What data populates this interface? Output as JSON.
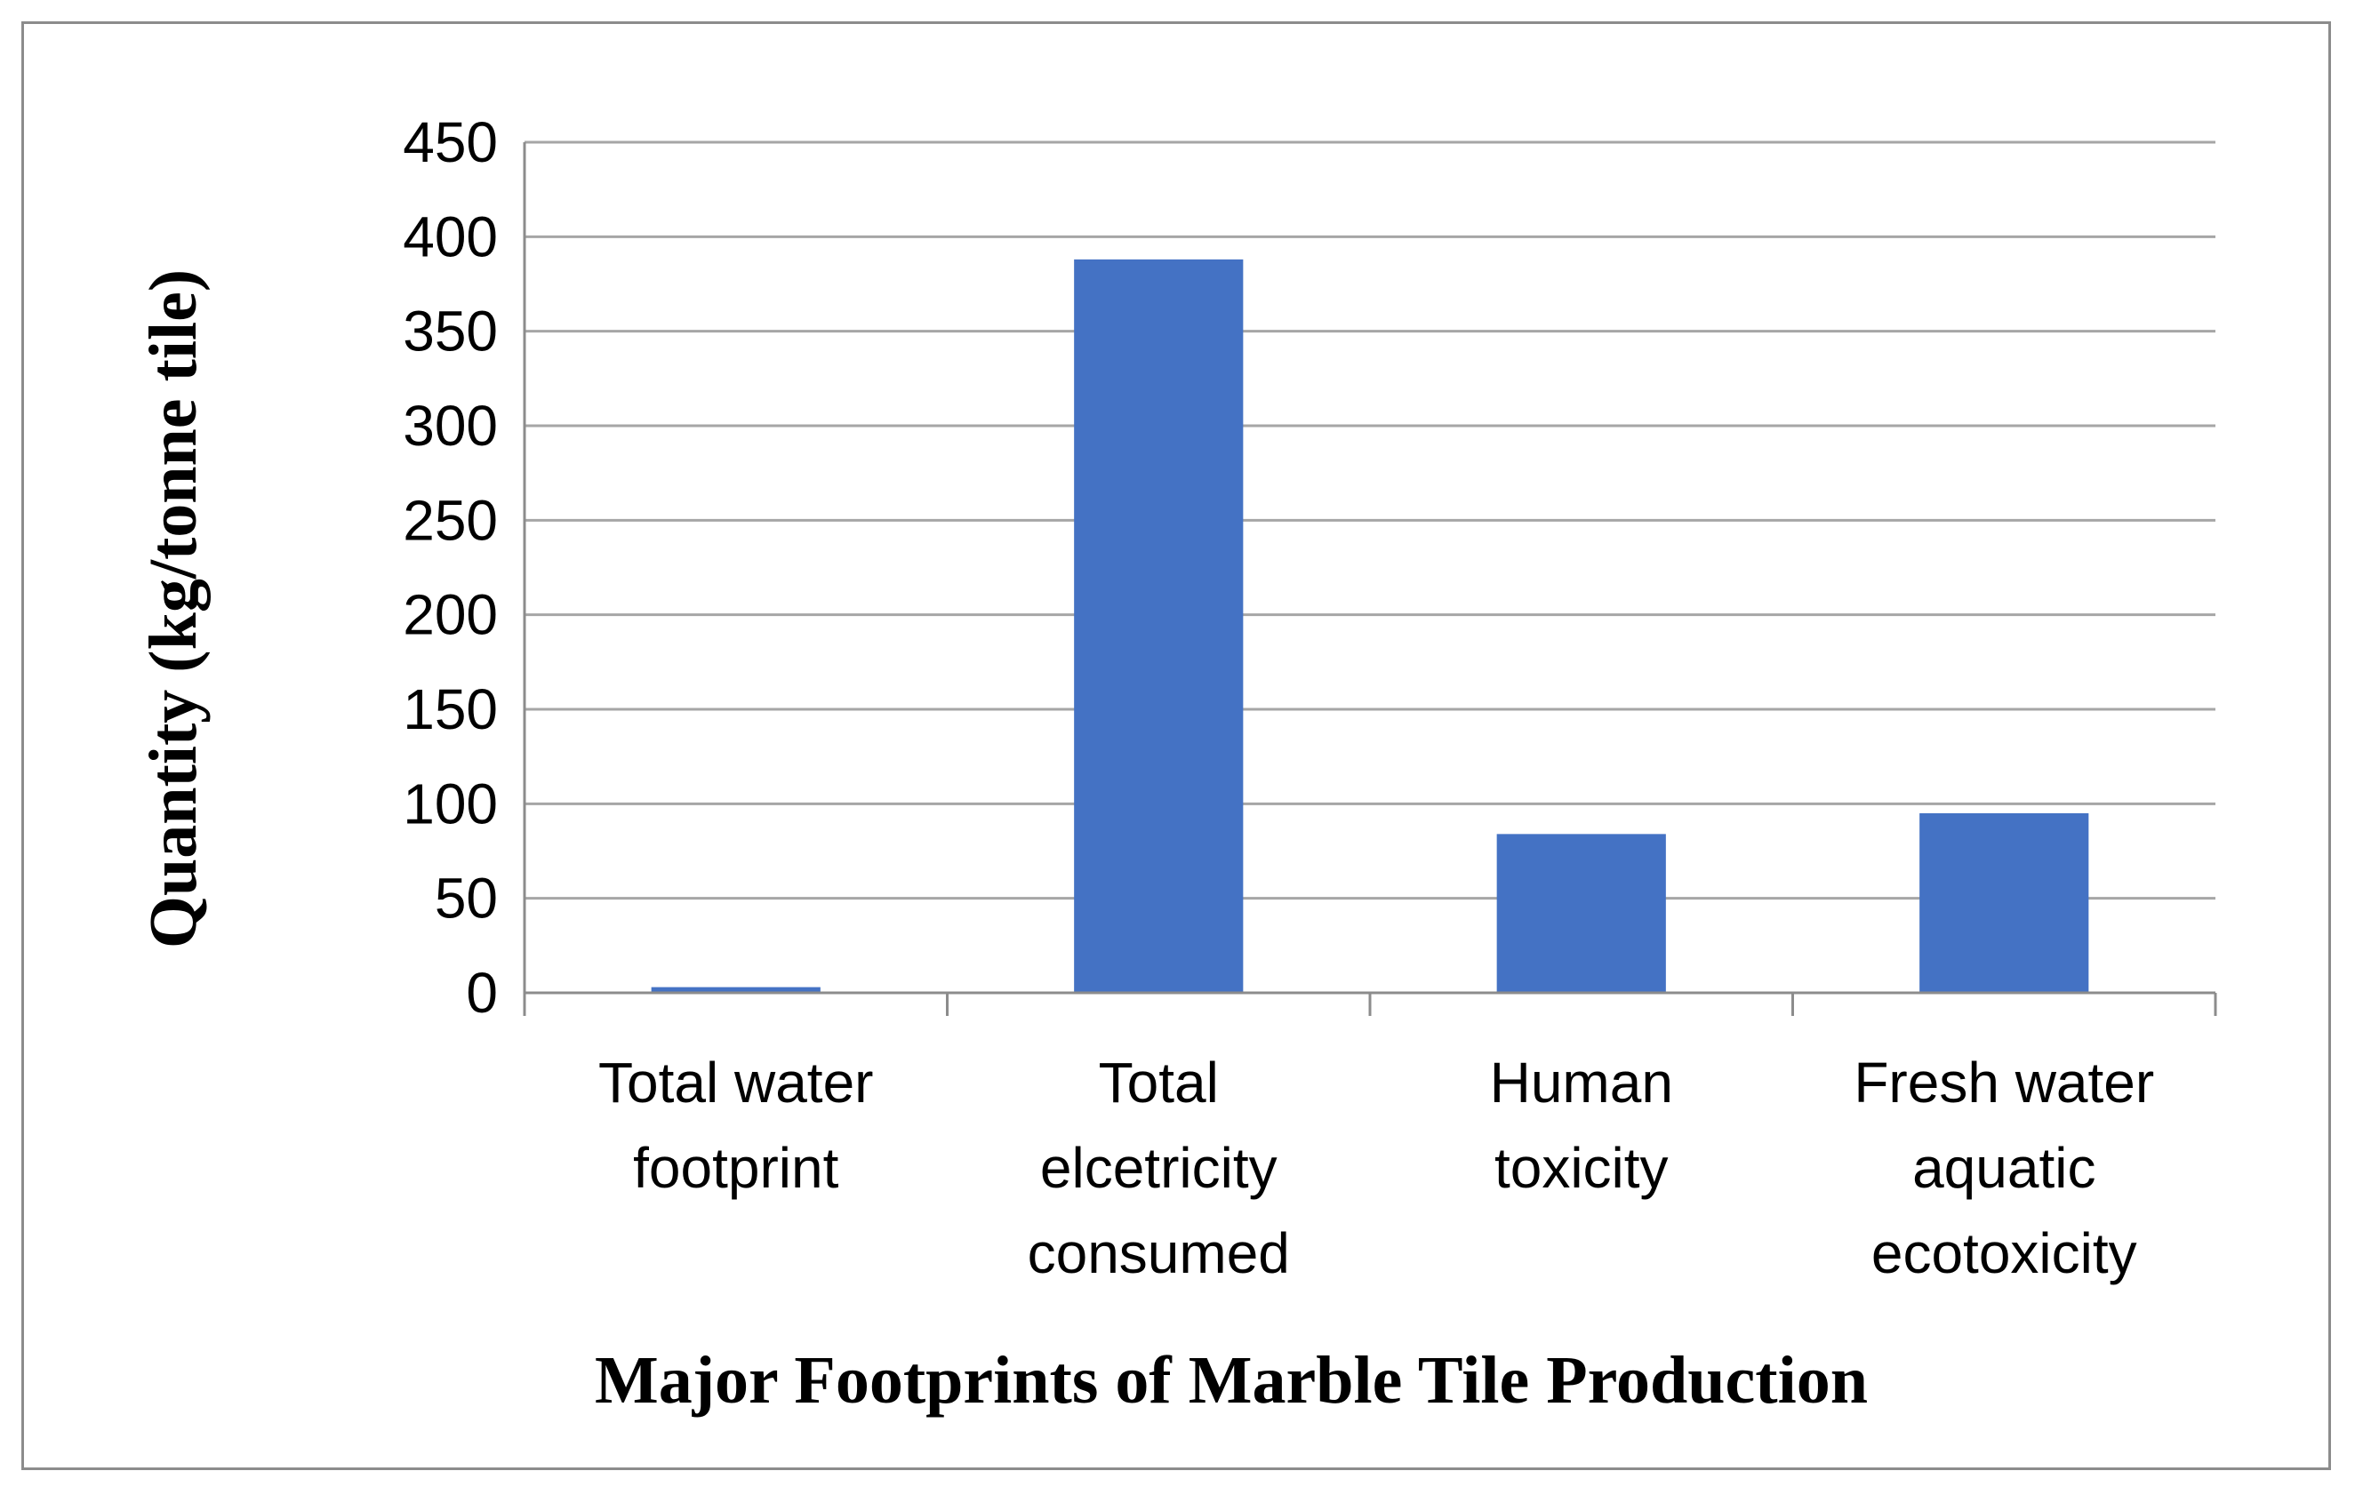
{
  "chart_data": {
    "type": "bar",
    "title": "",
    "xlabel": "Major Footprints of Marble Tile Production",
    "ylabel": "Quantity (kg/tonne tile)",
    "categories": [
      [
        "Total water",
        "footprint"
      ],
      [
        "Total",
        "elcetricity",
        "consumed"
      ],
      [
        "Human",
        "toxicity"
      ],
      [
        "Fresh water",
        "aquatic",
        "ecotoxicity"
      ]
    ],
    "values": [
      3,
      388,
      84,
      95
    ],
    "ylim": [
      0,
      450
    ],
    "yticks": [
      0,
      50,
      100,
      150,
      200,
      250,
      300,
      350,
      400,
      450
    ],
    "grid": true,
    "legend": "none",
    "colors": {
      "bar": "#4472c4",
      "grid": "#a6a6a6",
      "axis": "#8c8c8c",
      "frame": "#8c8c8c"
    }
  }
}
